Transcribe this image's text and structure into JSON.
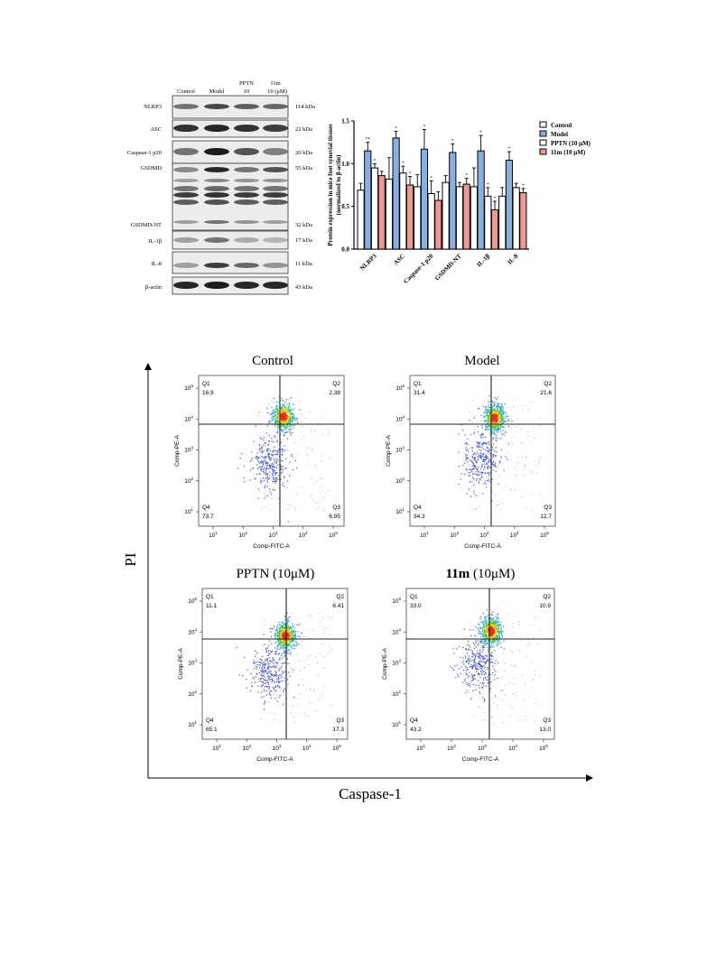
{
  "western_blot": {
    "lane_headers": [
      "Control",
      "Model",
      "PPTN\n10",
      "11m\n10 (μM)"
    ],
    "rows": [
      {
        "label": "NLRP3",
        "kda": "114 kDa"
      },
      {
        "label": "ASC",
        "kda": "22 kDa"
      },
      {
        "label": "Caspase-1 p20",
        "kda": "20 kDa"
      },
      {
        "label": "GSDMD",
        "kda": "55 kDa"
      },
      {
        "label": "GSDMD-NT",
        "kda": "32 kDa"
      },
      {
        "label": "IL-1β",
        "kda": "17 kDa"
      },
      {
        "label": "IL-8",
        "kda": "11 kDa"
      },
      {
        "label": "β-actin",
        "kda": "43 kDa"
      }
    ]
  },
  "colors": {
    "control": "#ffffff",
    "model": "#8ab0e0",
    "pptn": "#ffffff",
    "m11": "#ee9a94",
    "line": "#000000"
  },
  "flow": {
    "y_label": "PI",
    "x_label": "Caspase-1",
    "axis_x": "Comp-FITC-A",
    "axis_y": "Comp-PE-A",
    "tick_labels": [
      "10^1",
      "10^2",
      "10^3",
      "10^4",
      "10^5"
    ],
    "panels": [
      {
        "title": "Control",
        "title_bold": "",
        "title_rest": "Control",
        "q1": "16.9",
        "q2": "2.38",
        "q3": "6.95",
        "q4": "73.7"
      },
      {
        "title": "Model",
        "title_bold": "",
        "title_rest": "Model",
        "q1": "31.4",
        "q2": "21.6",
        "q3": "12.7",
        "q4": "34.3"
      },
      {
        "title": "PPTN (10μM)",
        "title_bold": "",
        "title_rest": "PPTN (10μM)",
        "q1": "11.1",
        "q2": "6.41",
        "q3": "17.3",
        "q4": "65.1"
      },
      {
        "title": "11m (10μM)",
        "title_bold": "11m",
        "title_rest": " (10μM)",
        "q1": "33.0",
        "q2": "10.9",
        "q3": "13.0",
        "q4": "43.2"
      }
    ]
  },
  "chart_data": [
    {
      "type": "bar",
      "ylabel": "Protein expression in mice foot synovial tissues\n(normalized to β-actin)",
      "ylim": [
        0,
        1.5
      ],
      "yticks": [
        "0.0",
        "0.5",
        "1.0",
        "1.5"
      ],
      "categories": [
        "NLRP3",
        "ASC",
        "Caspase-1 p20",
        "GSDMD-NT",
        "IL-1β",
        "IL-8"
      ],
      "legend_position": "top-right",
      "series": [
        {
          "name": "Control",
          "color": "#ffffff",
          "values": [
            0.69,
            0.82,
            0.73,
            0.78,
            0.73,
            0.62
          ],
          "errors": [
            0.08,
            0.25,
            0.14,
            0.08,
            0.22,
            0.1
          ]
        },
        {
          "name": "Model",
          "color": "#8ab0e0",
          "values": [
            1.15,
            1.3,
            1.17,
            1.13,
            1.15,
            1.04
          ],
          "errors": [
            0.1,
            0.08,
            0.23,
            0.1,
            0.18,
            0.1
          ]
        },
        {
          "name": "PPTN (10 μM)",
          "color": "#ffffff",
          "values": [
            0.95,
            0.89,
            0.65,
            0.73,
            0.62,
            0.72
          ],
          "errors": [
            0.05,
            0.08,
            0.15,
            0.05,
            0.1,
            0.05
          ]
        },
        {
          "name": "11m (10 μM)",
          "color": "#ee9a94",
          "values": [
            0.86,
            0.75,
            0.57,
            0.76,
            0.46,
            0.66
          ],
          "errors": [
            0.05,
            0.1,
            0.1,
            0.07,
            0.1,
            0.05
          ]
        }
      ],
      "significance": [
        [
          "",
          "**",
          "*",
          ""
        ],
        [
          "",
          "*",
          "*",
          "*"
        ],
        [
          "",
          "*",
          "*",
          ""
        ],
        [
          "",
          "*",
          "",
          "*"
        ],
        [
          "",
          "*",
          "*",
          "*"
        ],
        [
          "",
          "*",
          "",
          "*"
        ]
      ]
    }
  ]
}
